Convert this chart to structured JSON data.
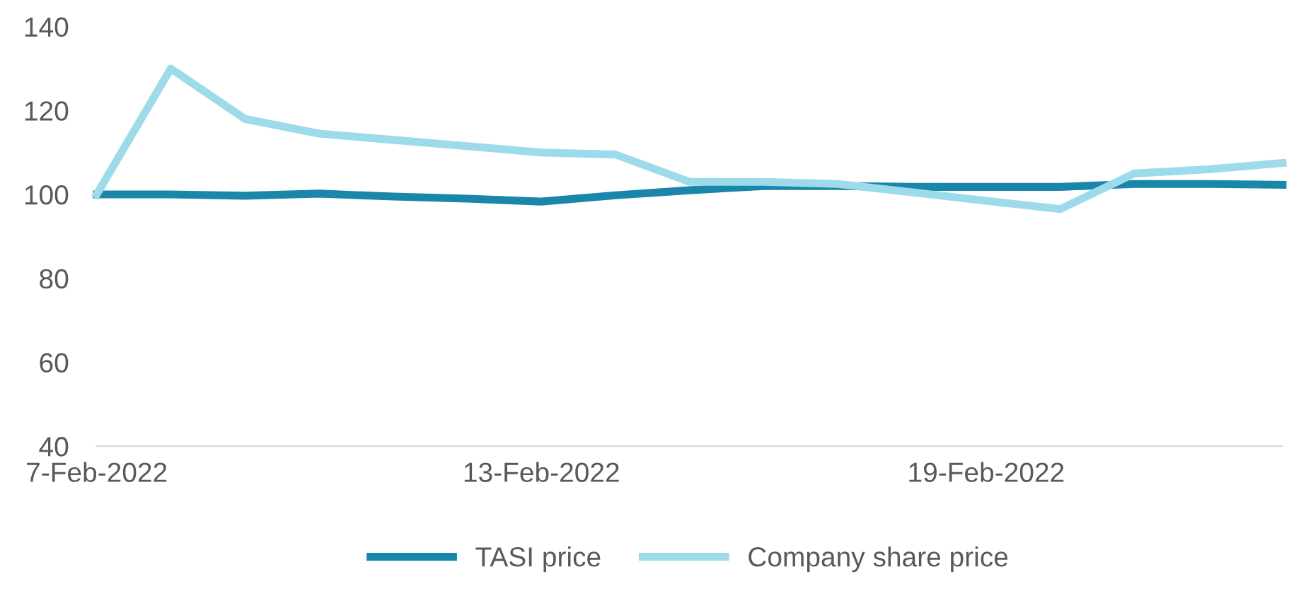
{
  "chart_data": {
    "type": "line",
    "x": [
      "2022-02-07",
      "2022-02-08",
      "2022-02-09",
      "2022-02-10",
      "2022-02-11",
      "2022-02-12",
      "2022-02-13",
      "2022-02-14",
      "2022-02-15",
      "2022-02-16",
      "2022-02-17",
      "2022-02-18",
      "2022-02-19",
      "2022-02-20",
      "2022-02-21",
      "2022-02-22",
      "2022-02-23"
    ],
    "series": [
      {
        "name": "TASI price",
        "color": "#1a86aa",
        "values": [
          100,
          100,
          99.7,
          100.2,
          99.5,
          99,
          98.3,
          99.8,
          101,
          102,
          102,
          101.8,
          101.8,
          101.8,
          102.5,
          102.5,
          102.3
        ]
      },
      {
        "name": "Company share price",
        "color": "#9edbea",
        "values": [
          100,
          130,
          118,
          114.5,
          113,
          111.5,
          110,
          109.5,
          103,
          103,
          102.5,
          100.5,
          98.5,
          96.5,
          105,
          106,
          107.5
        ]
      }
    ],
    "xlim": [
      "2022-02-07",
      "2022-02-23"
    ],
    "xticks": [
      {
        "value": "2022-02-07",
        "label": "7-Feb-2022"
      },
      {
        "value": "2022-02-13",
        "label": "13-Feb-2022"
      },
      {
        "value": "2022-02-19",
        "label": "19-Feb-2022"
      }
    ],
    "ylim": [
      40,
      140
    ],
    "yticks": [
      40,
      60,
      80,
      100,
      120,
      140
    ],
    "grid": false,
    "legend": "bottom",
    "marker": "none",
    "line_style": "solid"
  }
}
